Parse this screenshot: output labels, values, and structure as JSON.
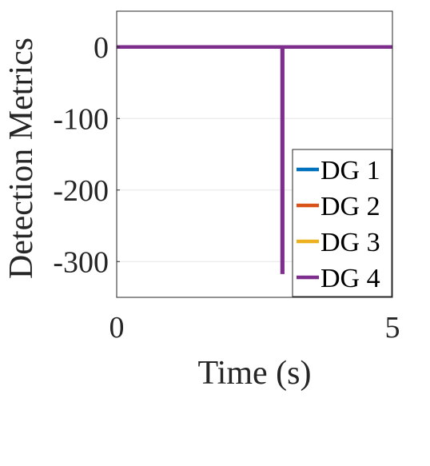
{
  "chart_data": {
    "type": "line",
    "xlabel": "Time (s)",
    "ylabel": "Detection Metrics",
    "xlim": [
      0,
      5
    ],
    "ylim": [
      -350,
      50
    ],
    "x_ticks": [
      0,
      5
    ],
    "y_ticks": [
      0,
      -100,
      -200,
      -300
    ],
    "x_tick_labels": [
      "0",
      "5"
    ],
    "y_tick_labels": [
      "0",
      "-100",
      "-200",
      "-300"
    ],
    "grid": true,
    "legend_position": "bottom-right",
    "series": [
      {
        "name": "DG 1",
        "color": "#0072BD",
        "x": [
          0,
          5
        ],
        "y": [
          0,
          0
        ]
      },
      {
        "name": "DG 2",
        "color": "#D95319",
        "x": [
          0,
          5
        ],
        "y": [
          0,
          0
        ]
      },
      {
        "name": "DG 3",
        "color": "#EDB120",
        "x": [
          0,
          5
        ],
        "y": [
          0,
          0
        ]
      },
      {
        "name": "DG 4",
        "color": "#7E2F8E",
        "x": [
          0,
          3,
          3,
          3.01,
          3.01,
          5
        ],
        "y": [
          0,
          0,
          -315,
          -315,
          0,
          0
        ]
      }
    ]
  }
}
